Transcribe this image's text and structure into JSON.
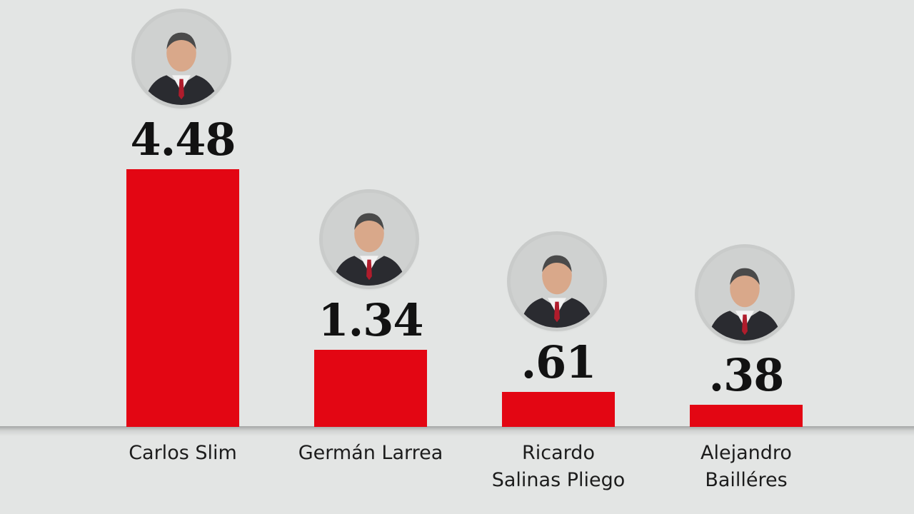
{
  "chart_data": {
    "type": "bar",
    "categories": [
      "Carlos Slim",
      "Germán Larrea",
      "Ricardo Salinas Pliego",
      "Alejandro Bailléres"
    ],
    "label_lines": [
      [
        "Carlos Slim"
      ],
      [
        "Germán Larrea"
      ],
      [
        "Ricardo",
        "Salinas Pliego"
      ],
      [
        "Alejandro",
        "Bailléres"
      ]
    ],
    "values": [
      4.48,
      1.34,
      0.61,
      0.38
    ],
    "value_labels": [
      "4.48",
      "1.34",
      ".61",
      ".38"
    ],
    "title": "",
    "xlabel": "",
    "ylabel": "",
    "ylim": [
      0,
      4.48
    ],
    "bar_color": "#e30613",
    "background_color": "#e3e5e4",
    "avatars": [
      "person-photo-icon",
      "person-photo-icon",
      "person-photo-icon",
      "person-photo-icon"
    ]
  }
}
